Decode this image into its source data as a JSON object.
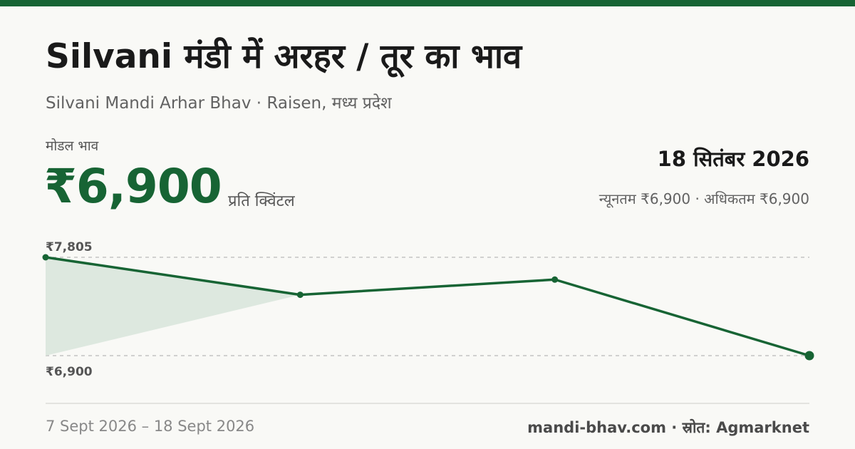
{
  "header": {
    "title": "Silvani मंडी में अरहर / तूर का भाव",
    "subtitle": "Silvani Mandi Arhar Bhav · Raisen, मध्य प्रदेश"
  },
  "price": {
    "label": "मोडल भाव",
    "value": "₹6,900",
    "unit": "प्रति क्विंटल"
  },
  "summary": {
    "date": "18 सितंबर 2026",
    "range": "न्यूनतम ₹6,900 · अधिकतम ₹6,900"
  },
  "footer": {
    "date_range": "7 Sept 2026 – 18 Sept 2026",
    "source": "mandi-bhav.com · स्रोत: Agmarknet"
  },
  "colors": {
    "brand": "#176434",
    "fill": "#dde8df"
  },
  "chart_data": {
    "type": "line",
    "max_label": "₹7,805",
    "min_label": "₹6,900",
    "ylim": [
      6900,
      7805
    ],
    "x": [
      "7 Sept 2026",
      "",
      "",
      "18 Sept 2026"
    ],
    "series": [
      {
        "values": [
          7805,
          7460,
          7600,
          6900
        ]
      }
    ],
    "grid": "dashed reference lines at max and min"
  }
}
